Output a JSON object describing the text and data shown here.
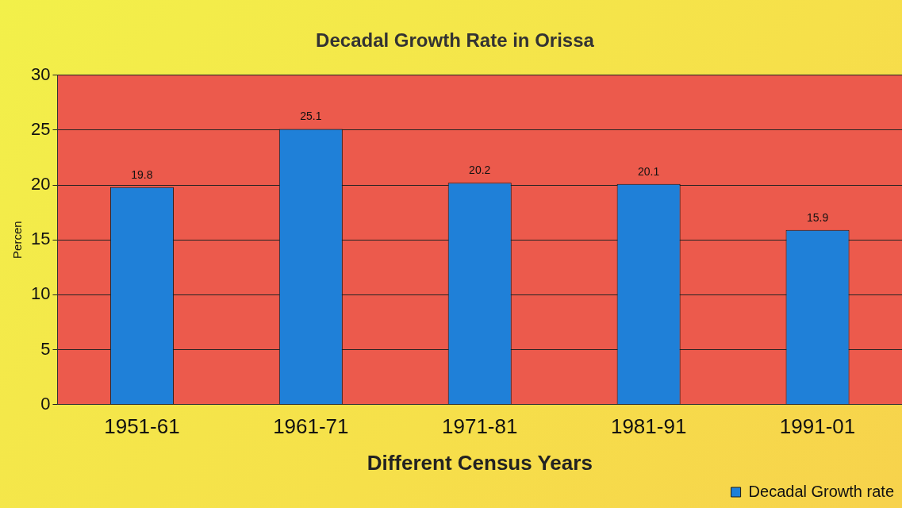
{
  "chart_data": {
    "type": "bar",
    "title": "Decadal Growth Rate in Orissa",
    "xlabel": "Different Census Years",
    "ylabel": "Percen",
    "categories": [
      "1951-61",
      "1961-71",
      "1971-81",
      "1981-91",
      "1991-01"
    ],
    "series": [
      {
        "name": "Decadal Growth rate",
        "color": "#1f80d8",
        "values": [
          19.8,
          25.1,
          20.2,
          20.1,
          15.9
        ]
      }
    ],
    "ylim": [
      0,
      30
    ],
    "yticks": [
      0,
      5,
      10,
      15,
      20,
      25,
      30
    ],
    "grid": "y",
    "legend": "bottom right",
    "data_labels": true
  }
}
